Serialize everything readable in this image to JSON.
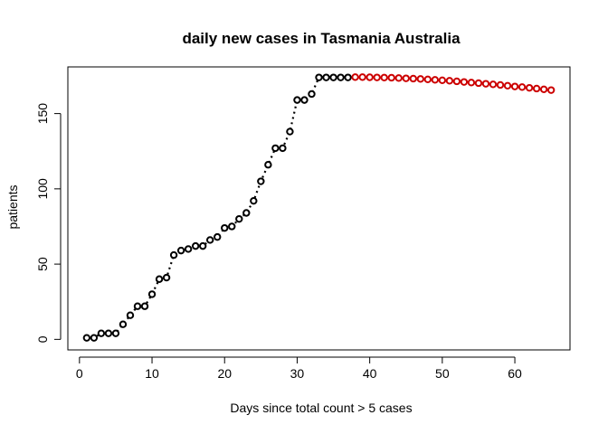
{
  "chart_data": {
    "type": "scatter",
    "title": "daily new cases in  Tasmania Australia",
    "xlabel": "Days since total count > 5 cases",
    "ylabel": "patients",
    "xlim": [
      -1.6,
      67.6
    ],
    "ylim": [
      -7,
      181
    ],
    "xticks": [
      0,
      10,
      20,
      30,
      40,
      50,
      60
    ],
    "yticks": [
      0,
      50,
      100,
      150
    ],
    "grid": false,
    "legend": "none",
    "series": [
      {
        "color": "#000000",
        "marker": "open-circle",
        "connector": "dotted",
        "x": [
          1,
          2,
          3,
          4,
          5,
          6,
          7,
          8,
          9,
          10,
          11,
          12,
          13,
          14,
          15,
          16,
          17,
          18,
          19,
          20,
          21,
          22,
          23,
          24,
          25,
          26,
          27,
          28,
          29,
          30,
          31,
          32,
          33,
          34,
          35,
          36,
          37
        ],
        "y": [
          1,
          1,
          4,
          4,
          4,
          10,
          16,
          22,
          22,
          30,
          40,
          41,
          56,
          59,
          60,
          62,
          62,
          66,
          68,
          74,
          75,
          80,
          84,
          92,
          105,
          116,
          127,
          127,
          138,
          159,
          159,
          163,
          174,
          174,
          174,
          174,
          174
        ]
      },
      {
        "color": "#cc0000",
        "marker": "open-circle",
        "connector": "none",
        "x": [
          38,
          39,
          40,
          41,
          42,
          43,
          44,
          45,
          46,
          47,
          48,
          49,
          50,
          51,
          52,
          53,
          54,
          55,
          56,
          57,
          58,
          59,
          60,
          61,
          62,
          63,
          64,
          65
        ],
        "y": [
          174.2,
          174.2,
          174.1,
          174.0,
          173.9,
          173.8,
          173.6,
          173.4,
          173.2,
          173.0,
          172.7,
          172.4,
          172.1,
          171.8,
          171.4,
          171.0,
          170.6,
          170.2,
          169.8,
          169.4,
          169.0,
          168.5,
          168.0,
          167.6,
          167.1,
          166.6,
          166.1,
          165.6
        ]
      }
    ]
  }
}
